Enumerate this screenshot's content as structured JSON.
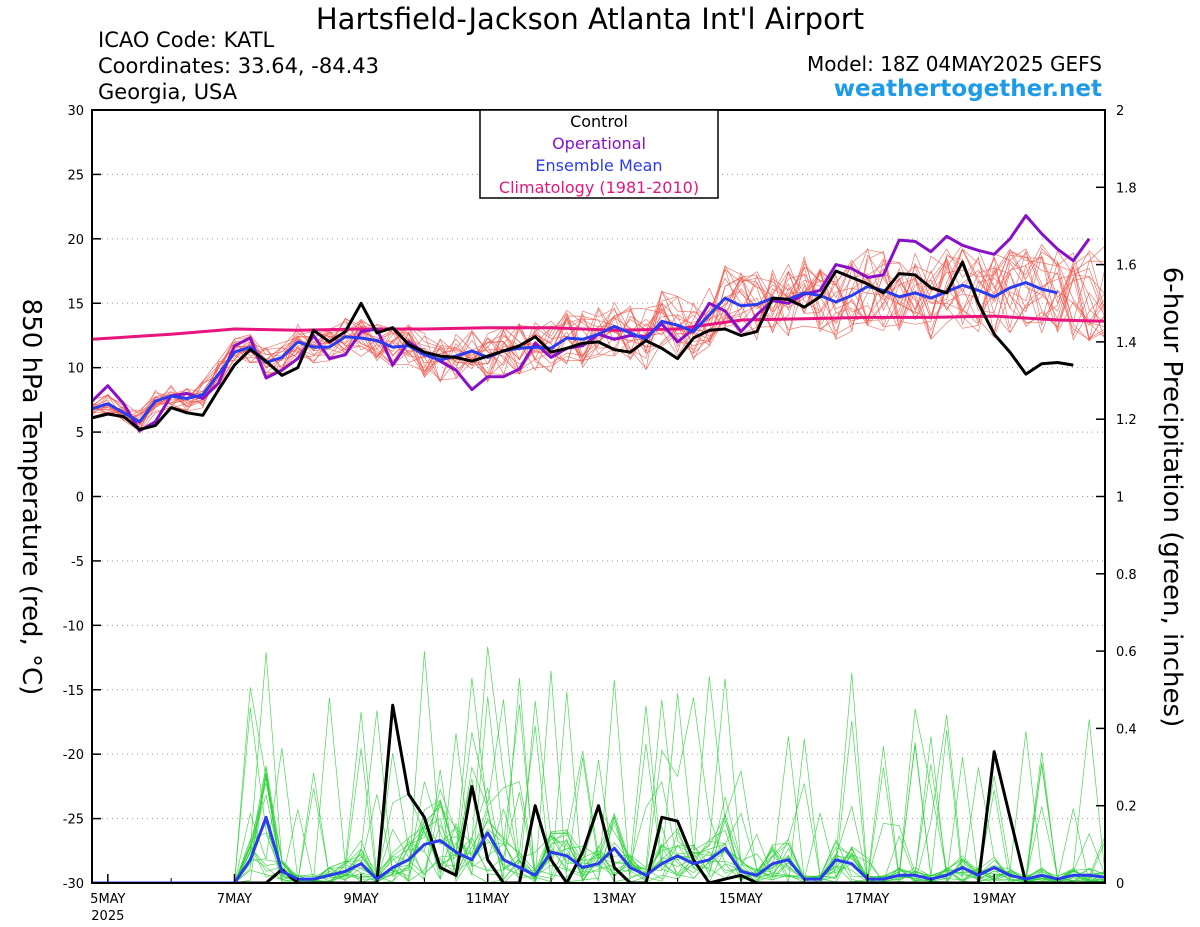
{
  "header": {
    "title": "Hartsfield-Jackson Atlanta Int'l Airport",
    "icao": "ICAO Code: KATL",
    "coordinates": "Coordinates: 33.64, -84.43",
    "region": "Georgia, USA",
    "model": "Model: 18Z 04MAY2025 GEFS",
    "site": "weathertogether.net"
  },
  "chart_data": {
    "type": "line",
    "title": "Hartsfield-Jackson Atlanta Int'l Airport",
    "ylabel": "850 hPa Temperature (red, °C)",
    "y2label": "6-hour Precipitation (green, inches)",
    "ylim": [
      -30,
      30
    ],
    "y2lim": [
      0,
      2
    ],
    "xlim": [
      -0.25,
      15.75
    ],
    "yticks": [
      30,
      25,
      20,
      15,
      10,
      5,
      0,
      -5,
      -10,
      -15,
      -20,
      -25,
      -30
    ],
    "y2ticks": [
      "2",
      "1.8",
      "1.6",
      "1.4",
      "1.2",
      "1",
      "0.8",
      "0.6",
      "0.4",
      "0.2",
      "0"
    ],
    "x_ticks": [
      {
        "x": 0,
        "label": "5MAY",
        "sub": "2025"
      },
      {
        "x": 2,
        "label": "7MAY"
      },
      {
        "x": 4,
        "label": "9MAY"
      },
      {
        "x": 6,
        "label": "11MAY"
      },
      {
        "x": 8,
        "label": "13MAY"
      },
      {
        "x": 10,
        "label": "15MAY"
      },
      {
        "x": 12,
        "label": "17MAY"
      },
      {
        "x": 14,
        "label": "19MAY"
      }
    ],
    "x_note": "x = days since 5MAY 00Z, 6-hour steps",
    "grid": true,
    "legend": {
      "position": "top-center",
      "entries": [
        {
          "label": "Control",
          "color": "#000000"
        },
        {
          "label": "Operational",
          "color": "#8a10c8"
        },
        {
          "label": "Ensemble Mean",
          "color": "#2a3cf0"
        },
        {
          "label": "Climatology (1981-2010)",
          "color": "#e8157e"
        }
      ]
    },
    "series": [
      {
        "name": "Control",
        "axis": "temperature",
        "color": "#000000",
        "x": [
          -0.25,
          0,
          0.25,
          0.5,
          0.75,
          1,
          1.25,
          1.5,
          1.75,
          2,
          2.25,
          2.5,
          2.75,
          3,
          3.25,
          3.5,
          3.75,
          4,
          4.25,
          4.5,
          4.75,
          5,
          5.25,
          5.5,
          5.75,
          6,
          6.25,
          6.5,
          6.75,
          7,
          7.25,
          7.5,
          7.75,
          8,
          8.25,
          8.5,
          8.75,
          9,
          9.25,
          9.5,
          9.75,
          10,
          10.25,
          10.5,
          10.75,
          11,
          11.25,
          11.5,
          11.75,
          12,
          12.25,
          12.5,
          12.75,
          13,
          13.25,
          13.5,
          13.75,
          14,
          14.25,
          14.5,
          14.75,
          15,
          15.25,
          15.5,
          15.75
        ],
        "y": [
          6.1,
          6.4,
          6.2,
          5.2,
          5.5,
          6.9,
          6.5,
          6.3,
          8.3,
          10.2,
          11.4,
          10.5,
          9.4,
          10,
          12.9,
          12,
          12.8,
          15,
          12.7,
          13.1,
          11.8,
          11.2,
          10.9,
          10.8,
          10.5,
          10.9,
          11.3,
          11.7,
          12.4,
          11.2,
          11.5,
          11.9,
          12,
          11.4,
          11.2,
          12.1,
          11.5,
          10.7,
          12.3,
          12.9,
          13,
          12.5,
          12.8,
          15.4,
          15.3,
          14.7,
          15.5,
          17.5,
          17,
          16.5,
          15.8,
          17.3,
          17.2,
          16.2,
          15.8,
          18.2,
          15,
          12.6,
          11.2,
          9.5,
          10.3,
          10.4,
          10.2,
          null,
          null
        ]
      },
      {
        "name": "Operational",
        "axis": "temperature",
        "color": "#8a10c8",
        "x": [
          -0.25,
          0,
          0.25,
          0.5,
          0.75,
          1,
          1.25,
          1.5,
          1.75,
          2,
          2.25,
          2.5,
          2.75,
          3,
          3.25,
          3.5,
          3.75,
          4,
          4.25,
          4.5,
          4.75,
          5,
          5.25,
          5.5,
          5.75,
          6,
          6.25,
          6.5,
          6.75,
          7,
          7.25,
          7.5,
          7.75,
          8,
          8.25,
          8.5,
          8.75,
          9,
          9.25,
          9.5,
          9.75,
          10,
          10.25,
          10.5,
          10.75,
          11,
          11.25,
          11.5,
          11.75,
          12,
          12.25,
          12.5,
          12.75,
          13,
          13.25,
          13.5,
          13.75,
          14,
          14.25,
          14.5,
          14.75,
          15,
          15.25,
          15.5,
          15.75
        ],
        "y": [
          7.4,
          8.6,
          7.2,
          5.1,
          5.8,
          7.8,
          8,
          7.6,
          8.8,
          11.7,
          12.3,
          9.2,
          9.8,
          10.7,
          12.5,
          10.7,
          11,
          12.8,
          13,
          10.2,
          12,
          11.2,
          10.5,
          9.8,
          8.3,
          9.3,
          9.3,
          9.9,
          11.9,
          10.8,
          11.5,
          11.7,
          12.6,
          12.2,
          12.5,
          12.4,
          13.4,
          12,
          13,
          15,
          14.4,
          12.8,
          14.1,
          15.2,
          15,
          15.7,
          16,
          18,
          17.7,
          17,
          17.2,
          19.9,
          19.8,
          19,
          20.2,
          19.5,
          19.1,
          18.8,
          20,
          21.8,
          20.4,
          19.2,
          18.3,
          20,
          null
        ],
        "__shift": true
      },
      {
        "name": "Ensemble Mean",
        "axis": "temperature",
        "color": "#2a3cf0",
        "x": [
          -0.25,
          0,
          0.25,
          0.5,
          0.75,
          1,
          1.25,
          1.5,
          1.75,
          2,
          2.25,
          2.5,
          2.75,
          3,
          3.25,
          3.5,
          3.75,
          4,
          4.25,
          4.5,
          4.75,
          5,
          5.25,
          5.5,
          5.75,
          6,
          6.25,
          6.5,
          6.75,
          7,
          7.25,
          7.5,
          7.75,
          8,
          8.25,
          8.5,
          8.75,
          9,
          9.25,
          9.5,
          9.75,
          10,
          10.25,
          10.5,
          10.75,
          11,
          11.25,
          11.5,
          11.75,
          12,
          12.25,
          12.5,
          12.75,
          13,
          13.25,
          13.5,
          13.75,
          14,
          14.25,
          14.5,
          14.75,
          15,
          15.25,
          15.5,
          15.75
        ],
        "y": [
          6.8,
          7.2,
          6.5,
          5.8,
          7.4,
          7.8,
          7.6,
          7.9,
          9.5,
          11.2,
          11.6,
          10.4,
          10.8,
          12,
          11.6,
          11.6,
          12.4,
          12.3,
          12.1,
          11.6,
          11.7,
          11,
          10.6,
          10.9,
          11.3,
          10.8,
          11.3,
          11.5,
          11.6,
          11.5,
          12.3,
          12.2,
          12.6,
          13.2,
          12.7,
          12.2,
          13.6,
          13.3,
          12.8,
          14.1,
          15.4,
          14.8,
          14.9,
          15.4,
          15.3,
          15.8,
          15.6,
          15.1,
          15.6,
          16.3,
          16,
          15.5,
          15.8,
          15.4,
          15.9,
          16.4,
          16,
          15.5,
          16.2,
          16.6,
          16.1,
          15.8,
          null,
          null,
          null
        ]
      },
      {
        "name": "Climatology (1981-2010)",
        "axis": "temperature",
        "color": "#e8157e",
        "x": [
          -0.25,
          1,
          2,
          3,
          4,
          5,
          6,
          7,
          8,
          9,
          10,
          11,
          12,
          13,
          14,
          15,
          15.75
        ],
        "y": [
          12.2,
          12.6,
          13,
          12.9,
          13,
          13,
          13.1,
          13.1,
          12.9,
          13,
          13.7,
          13.8,
          13.9,
          13.9,
          14,
          13.7,
          13.6
        ]
      },
      {
        "name": "Control",
        "axis": "precipitation",
        "color": "#000000",
        "x": [
          -0.25,
          0,
          1,
          2,
          2.25,
          2.5,
          2.75,
          3,
          3.25,
          3.5,
          3.75,
          4,
          4.25,
          4.5,
          4.75,
          5,
          5.25,
          5.5,
          5.75,
          6,
          6.25,
          6.5,
          6.75,
          7,
          7.25,
          7.5,
          7.75,
          8,
          8.25,
          8.5,
          8.75,
          9,
          9.25,
          9.5,
          9.75,
          10,
          10.25,
          10.5,
          10.75,
          11,
          12,
          13,
          13.75,
          14,
          14.25,
          14.5,
          14.75,
          15,
          15.25,
          15.5,
          15.75
        ],
        "y": [
          0,
          0,
          0,
          0,
          0,
          0,
          0.035,
          0,
          0,
          0,
          0,
          0,
          0,
          0.46,
          0.23,
          0.17,
          0.04,
          0.02,
          0.25,
          0.06,
          0,
          0,
          0.2,
          0.06,
          0,
          0.08,
          0.2,
          0.04,
          0,
          0,
          0.17,
          0.16,
          0.06,
          0,
          0.01,
          0.02,
          0,
          0,
          0,
          0,
          0,
          0,
          0,
          0.34,
          0.17,
          0,
          0,
          0,
          0,
          0,
          0
        ]
      },
      {
        "name": "Ensemble Mean",
        "axis": "precipitation",
        "color": "#2a3cf0",
        "x": [
          -0.25,
          0,
          0.5,
          1,
          1.5,
          2,
          2.25,
          2.5,
          2.75,
          3,
          3.25,
          3.5,
          3.75,
          4,
          4.25,
          4.5,
          4.75,
          5,
          5.25,
          5.5,
          5.75,
          6,
          6.25,
          6.5,
          6.75,
          7,
          7.25,
          7.5,
          7.75,
          8,
          8.25,
          8.5,
          8.75,
          9,
          9.25,
          9.5,
          9.75,
          10,
          10.25,
          10.5,
          10.75,
          11,
          11.25,
          11.5,
          11.75,
          12,
          12.25,
          12.5,
          12.75,
          13,
          13.25,
          13.5,
          13.75,
          14,
          14.25,
          14.5,
          14.75,
          15,
          15.25,
          15.5,
          15.75
        ],
        "y": [
          0,
          0,
          0,
          0,
          0,
          0,
          0.06,
          0.17,
          0.03,
          0.01,
          0.01,
          0.02,
          0.03,
          0.05,
          0.01,
          0.04,
          0.06,
          0.1,
          0.11,
          0.08,
          0.06,
          0.13,
          0.06,
          0.04,
          0.02,
          0.08,
          0.07,
          0.04,
          0.05,
          0.09,
          0.04,
          0.02,
          0.05,
          0.07,
          0.05,
          0.06,
          0.09,
          0.03,
          0.02,
          0.05,
          0.06,
          0.01,
          0.01,
          0.06,
          0.05,
          0.01,
          0.01,
          0.02,
          0.02,
          0.01,
          0.02,
          0.04,
          0.02,
          0.04,
          0.02,
          0.01,
          0.02,
          0.01,
          0.02,
          0.02,
          0.015
        ]
      }
    ],
    "members_note": "20 GEFS members: thin red (temperature) and thin green (precipitation) lines"
  }
}
